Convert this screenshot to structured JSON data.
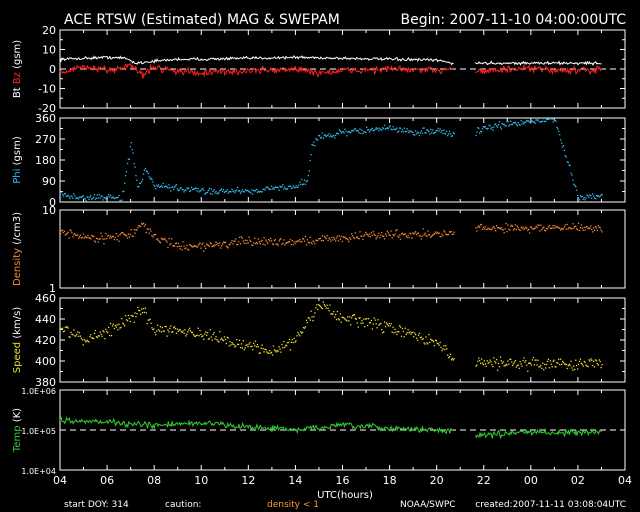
{
  "header": {
    "title": "ACE RTSW (Estimated) MAG & SWEPAM",
    "begin": "Begin: 2007-11-10 04:00:00UTC"
  },
  "footer": {
    "start_doy": "start DOY: 314",
    "caution": "caution:",
    "density_note": "density < 1",
    "source": "NOAA/SWPC",
    "created": "created:2007-11-11 03:08:04UTC"
  },
  "colors": {
    "background": "#000000",
    "axes": "#ffffff",
    "bt": "#ffffff",
    "bz": "#ff2020",
    "phi": "#33bbee",
    "density": "#f08838",
    "speed": "#eedd33",
    "temp": "#33cc33",
    "caution": "#ff9933"
  },
  "chart_data": {
    "type": "scatter",
    "x_unit": "hours since 2007-11-10 04:00 UTC",
    "x_range": [
      4,
      28
    ],
    "x_ticks": [
      "04",
      "06",
      "08",
      "10",
      "12",
      "14",
      "16",
      "18",
      "20",
      "22",
      "00",
      "02",
      "04"
    ],
    "xlabel": "UTC(hours)",
    "data_gap_hours": [
      20.75,
      21.6
    ],
    "panels": [
      {
        "id": "mag",
        "ylabel_parts": [
          {
            "text": "Bt",
            "color": "#ffffff"
          },
          {
            "text": "Bz",
            "color": "#ff2020"
          },
          {
            "text": "(gsm)",
            "color": "#ffffff"
          }
        ],
        "ylim": [
          -20,
          20
        ],
        "yticks": [
          "20",
          "10",
          "0",
          "-10",
          "-20"
        ],
        "tick_values": [
          20,
          10,
          0,
          -10,
          -20
        ],
        "log": false,
        "ref_line": 0,
        "series": [
          {
            "name": "Bt",
            "color": "#ffffff",
            "mode": "line",
            "x": [
              4,
              5,
              6,
              6.8,
              7.2,
              8,
              9,
              10,
              12,
              14,
              16,
              18,
              20,
              20.7,
              21.6,
              24,
              26,
              27
            ],
            "y": [
              5,
              5.5,
              6,
              5.5,
              3,
              4,
              5,
              5,
              5.5,
              6,
              5.5,
              5,
              4.5,
              3,
              3,
              3,
              3,
              3
            ],
            "noise": 0.8
          },
          {
            "name": "Bz",
            "color": "#ff2020",
            "mode": "line",
            "x": [
              4,
              5,
              6,
              7,
              7.5,
              8,
              9,
              10,
              12,
              14,
              15,
              16,
              18,
              20,
              20.7,
              21.6,
              24,
              26,
              27
            ],
            "y": [
              -2,
              1,
              -1,
              2,
              -3,
              1,
              -1,
              -2,
              -1,
              0,
              -2,
              -1,
              0,
              -1,
              1,
              -1,
              0,
              -1,
              0
            ],
            "noise": 2.0
          }
        ]
      },
      {
        "id": "phi",
        "ylabel_parts": [
          {
            "text": "Phi",
            "color": "#33bbee"
          },
          {
            "text": "(gsm)",
            "color": "#ffffff"
          }
        ],
        "ylim": [
          0,
          360
        ],
        "yticks": [
          "360",
          "270",
          "180",
          "90",
          "0"
        ],
        "tick_values": [
          360,
          270,
          180,
          90,
          0
        ],
        "log": false,
        "series": [
          {
            "name": "Phi",
            "color": "#33bbee",
            "mode": "dots",
            "x": [
              4,
              5,
              6,
              6.6,
              7,
              7.3,
              7.6,
              8,
              10,
              12,
              13,
              14,
              14.5,
              14.7,
              15,
              16,
              17,
              18,
              19,
              20,
              20.7,
              21.6,
              22,
              24,
              25,
              26,
              27
            ],
            "y": [
              30,
              20,
              25,
              15,
              250,
              60,
              140,
              70,
              50,
              50,
              60,
              70,
              100,
              250,
              280,
              300,
              310,
              320,
              300,
              310,
              290,
              300,
              320,
              350,
              355,
              20,
              30
            ],
            "noise": 15
          }
        ]
      },
      {
        "id": "density",
        "ylabel_parts": [
          {
            "text": "Density",
            "color": "#f08838"
          },
          {
            "text": "(/cm3)",
            "color": "#ffffff"
          }
        ],
        "ylim": [
          1,
          10
        ],
        "yticks": [
          "10",
          "1"
        ],
        "tick_values": [
          10,
          1
        ],
        "log": true,
        "series": [
          {
            "name": "Density",
            "color": "#f08838",
            "mode": "dots",
            "x": [
              4,
              5,
              6,
              7,
              7.5,
              8,
              9,
              10,
              12,
              14,
              16,
              18,
              20,
              20.7,
              21.6,
              24,
              26,
              27
            ],
            "y": [
              5.5,
              4.5,
              4.5,
              5,
              6.5,
              4.5,
              3.5,
              3.5,
              4,
              4,
              4.5,
              5,
              5,
              5,
              6,
              6,
              6,
              6
            ],
            "noise_log": 0.06
          }
        ]
      },
      {
        "id": "speed",
        "ylabel_parts": [
          {
            "text": "Speed",
            "color": "#eedd33"
          },
          {
            "text": "(km/s)",
            "color": "#ffffff"
          }
        ],
        "ylim": [
          380,
          460
        ],
        "yticks": [
          "460",
          "440",
          "420",
          "400",
          "380"
        ],
        "tick_values": [
          460,
          440,
          420,
          400,
          380
        ],
        "log": false,
        "series": [
          {
            "name": "Speed",
            "color": "#eedd33",
            "mode": "dots",
            "x": [
              4,
              5,
              6,
              7,
              7.5,
              8,
              9,
              10,
              11,
              12,
              13,
              14,
              15,
              16,
              17,
              18,
              19,
              20,
              20.7,
              21.6,
              24,
              26,
              27
            ],
            "y": [
              432,
              420,
              430,
              440,
              450,
              430,
              432,
              425,
              420,
              415,
              410,
              420,
              455,
              440,
              438,
              432,
              425,
              418,
              400,
              400,
              398,
              398,
              398
            ],
            "noise": 6
          }
        ]
      },
      {
        "id": "temp",
        "ylabel_parts": [
          {
            "text": "Temp",
            "color": "#33cc33"
          },
          {
            "text": "(K)",
            "color": "#ffffff"
          }
        ],
        "ylim": [
          10000,
          1000000
        ],
        "yticks": [
          "1.0E+06",
          "1.0E+05",
          "1.0E+04"
        ],
        "tick_values": [
          1000000,
          100000,
          10000
        ],
        "log": true,
        "ref_line": 100000,
        "series": [
          {
            "name": "Temp",
            "color": "#33cc33",
            "mode": "line",
            "x": [
              4,
              5,
              6,
              7,
              8,
              9,
              10,
              12,
              14,
              16,
              18,
              20,
              20.7,
              21.6,
              24,
              26,
              27
            ],
            "y": [
              180000,
              170000,
              160000,
              140000,
              130000,
              140000,
              150000,
              120000,
              100000,
              130000,
              110000,
              100000,
              95000,
              70000,
              90000,
              85000,
              90000
            ],
            "noise_log": 0.08
          }
        ]
      }
    ]
  }
}
